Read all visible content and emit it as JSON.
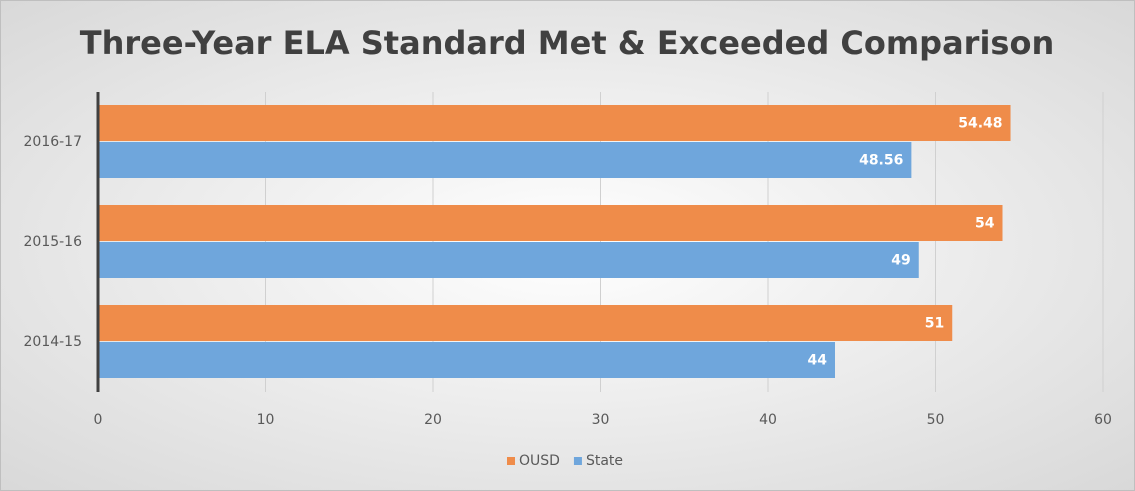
{
  "chart_data": {
    "type": "hbar",
    "title": "Three-Year ELA Standard Met & Exceeded Comparison",
    "categories": [
      "2016-17",
      "2015-16",
      "2014-15"
    ],
    "series": [
      {
        "name": "OUSD",
        "color": "#ef8c4a",
        "values": [
          54.48,
          54,
          51
        ]
      },
      {
        "name": "State",
        "color": "#6fa6dc",
        "values": [
          48.56,
          49,
          44
        ]
      }
    ],
    "xlim": [
      0,
      60
    ],
    "xticks": [
      0,
      10,
      20,
      30,
      40,
      50,
      60
    ],
    "grid": true,
    "legend": "bottom"
  }
}
